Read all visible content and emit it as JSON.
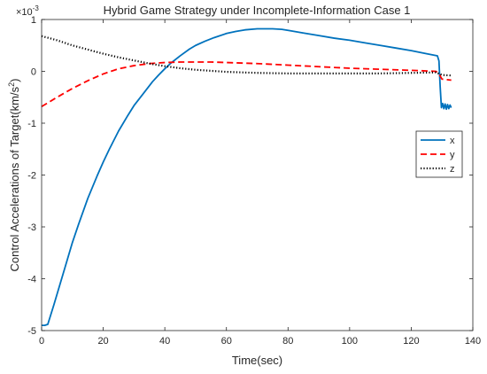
{
  "chart_data": {
    "type": "line",
    "title": "Hybrid Game Strategy under Incomplete-Information Case 1",
    "xlabel": "Time(sec)",
    "ylabel_main": "Control Accelerations of Target(km/s",
    "ylabel_sup": "2",
    "ylabel_close": ")",
    "y_multiplier_base": "×10",
    "y_multiplier_exp": "-3",
    "xlim": [
      0,
      140
    ],
    "ylim": [
      -5,
      1
    ],
    "xticks": [
      0,
      20,
      40,
      60,
      80,
      100,
      120,
      140
    ],
    "yticks": [
      -5,
      -4,
      -3,
      -2,
      -1,
      0,
      1
    ],
    "grid": false,
    "legend_position": "right",
    "series": [
      {
        "name": "x",
        "color": "#0072BD",
        "style": "solid",
        "x": [
          0,
          1,
          2,
          4,
          6,
          8,
          10,
          12,
          15,
          18,
          20,
          22,
          25,
          28,
          30,
          33,
          36,
          38,
          40,
          42,
          45,
          48,
          50,
          53,
          56,
          60,
          63,
          66,
          70,
          73,
          75,
          78,
          80,
          85,
          90,
          95,
          100,
          105,
          110,
          115,
          120,
          125,
          128.5,
          129,
          129.4,
          129.8,
          130.2,
          130.6,
          131,
          131.4,
          131.8,
          132.2,
          132.6,
          133
        ],
        "y": [
          -4.9,
          -4.9,
          -4.88,
          -4.5,
          -4.1,
          -3.7,
          -3.3,
          -2.95,
          -2.45,
          -2.02,
          -1.75,
          -1.5,
          -1.15,
          -0.85,
          -0.66,
          -0.43,
          -0.2,
          -0.07,
          0.05,
          0.16,
          0.3,
          0.43,
          0.5,
          0.58,
          0.65,
          0.73,
          0.77,
          0.8,
          0.82,
          0.82,
          0.82,
          0.81,
          0.79,
          0.74,
          0.69,
          0.64,
          0.6,
          0.55,
          0.5,
          0.45,
          0.4,
          0.34,
          0.3,
          0.2,
          -0.3,
          -0.7,
          -0.62,
          -0.72,
          -0.63,
          -0.73,
          -0.64,
          -0.72,
          -0.65,
          -0.7
        ]
      },
      {
        "name": "y",
        "color": "#FF0000",
        "style": "dashed",
        "x": [
          0,
          5,
          10,
          15,
          20,
          25,
          30,
          35,
          40,
          45,
          50,
          55,
          60,
          70,
          80,
          90,
          100,
          110,
          120,
          128,
          129,
          130,
          133
        ],
        "y": [
          -0.68,
          -0.5,
          -0.33,
          -0.18,
          -0.05,
          0.05,
          0.11,
          0.15,
          0.17,
          0.18,
          0.18,
          0.18,
          0.17,
          0.15,
          0.12,
          0.09,
          0.06,
          0.04,
          0.02,
          0.0,
          -0.05,
          -0.15,
          -0.17
        ]
      },
      {
        "name": "z",
        "color": "#000000",
        "style": "dotted",
        "x": [
          0,
          5,
          10,
          15,
          20,
          25,
          30,
          35,
          40,
          45,
          50,
          55,
          60,
          70,
          80,
          90,
          100,
          110,
          120,
          128,
          130,
          133
        ],
        "y": [
          0.68,
          0.6,
          0.5,
          0.42,
          0.34,
          0.27,
          0.21,
          0.15,
          0.1,
          0.06,
          0.03,
          0.01,
          -0.01,
          -0.03,
          -0.04,
          -0.04,
          -0.04,
          -0.04,
          -0.03,
          -0.02,
          -0.07,
          -0.08
        ]
      }
    ]
  }
}
